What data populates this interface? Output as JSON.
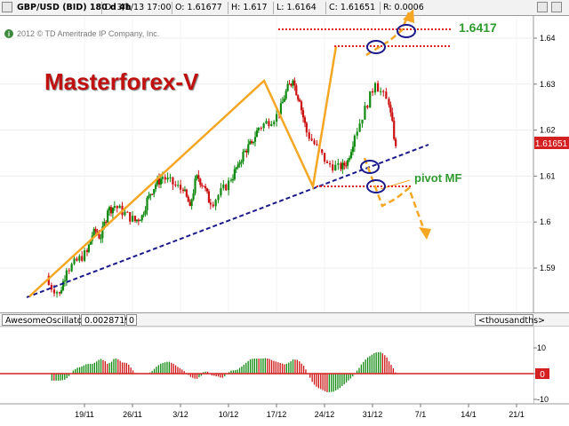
{
  "header": {
    "symbol": "GBP/USD (BID) 180 d 4h",
    "date": "D: 3/1/13 17:00",
    "open": "O: 1.61677",
    "high": "H: 1.617",
    "low": "L: 1.6164",
    "close": "C: 1.61651",
    "range": "R: 0.0006"
  },
  "copyright": "2012 © TD Ameritrade IP Company, Inc.",
  "watermark": "Masterforex-V",
  "annotations": {
    "level_label": "1.6417",
    "pivot_label": "pivot MF"
  },
  "price_badge": "1.61651",
  "oscillator": {
    "name": "AwesomeOscillator",
    "value": "0.0028719",
    "extra": "0",
    "units": "<thousandths>",
    "zero_badge": "0"
  },
  "colors": {
    "up": "#0f8a0f",
    "down": "#cc1111",
    "pattern": "#f5a623",
    "trend": "#1a1a8c",
    "level": "#dd2222",
    "watermark": "#c01010"
  },
  "chart_data": [
    {
      "type": "candlestick",
      "title": "GBP/USD (BID) 180 d 4h",
      "x_tick_labels": [
        "19/11",
        "26/11",
        "3/12",
        "10/12",
        "17/12",
        "24/12",
        "31/12",
        "7/1",
        "14/1",
        "21/1"
      ],
      "y_ticks": [
        1.59,
        1.6,
        1.61,
        1.62,
        1.63,
        1.64
      ],
      "ylim": [
        1.583,
        1.647
      ],
      "last_price": 1.61651,
      "series": [
        {
          "name": "close",
          "x": [
            "2012-11-13",
            "2012-11-15",
            "2012-11-16",
            "2012-11-19",
            "2012-11-20",
            "2012-11-21",
            "2012-11-22",
            "2012-11-23",
            "2012-11-26",
            "2012-11-27",
            "2012-11-28",
            "2012-11-29",
            "2012-11-30",
            "2012-12-03",
            "2012-12-04",
            "2012-12-05",
            "2012-12-06",
            "2012-12-07",
            "2012-12-10",
            "2012-12-11",
            "2012-12-12",
            "2012-12-13",
            "2012-12-14",
            "2012-12-17",
            "2012-12-18",
            "2012-12-19",
            "2012-12-20",
            "2012-12-21",
            "2012-12-24",
            "2012-12-26",
            "2012-12-27",
            "2012-12-28",
            "2012-12-31",
            "2013-01-02",
            "2013-01-03"
          ],
          "values": [
            1.5868,
            1.5845,
            1.5895,
            1.5935,
            1.5985,
            1.5965,
            1.6025,
            1.6035,
            1.6002,
            1.6015,
            1.6058,
            1.6082,
            1.6098,
            1.6068,
            1.6035,
            1.6102,
            1.6078,
            1.6038,
            1.6092,
            1.6125,
            1.6155,
            1.6172,
            1.6205,
            1.6235,
            1.6285,
            1.6308,
            1.6262,
            1.6195,
            1.6128,
            1.6115,
            1.6135,
            1.6188,
            1.6302,
            1.6255,
            1.61651
          ]
        }
      ],
      "annotations": [
        {
          "type": "level",
          "value": 1.6417,
          "label": "1.6417"
        },
        {
          "type": "level",
          "value": 1.6374
        },
        {
          "type": "level",
          "value": 1.6077,
          "label": "pivot MF"
        },
        {
          "type": "trendline",
          "from": [
            "2012-11-14",
            1.5836
          ],
          "to": [
            "2013-01-05",
            1.6165
          ]
        }
      ]
    },
    {
      "type": "bar",
      "title": "AwesomeOscillator",
      "ylabel": "<thousandths>",
      "y_ticks": [
        -10,
        0,
        10
      ],
      "ylim": [
        -12,
        16
      ],
      "current_value": 0.0028719
    }
  ]
}
